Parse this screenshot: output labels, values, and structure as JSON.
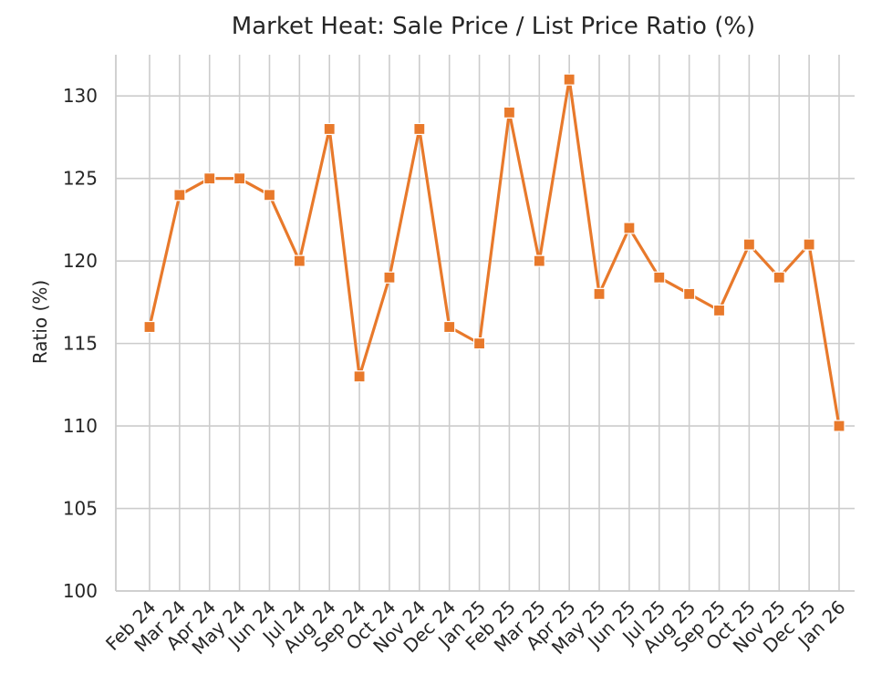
{
  "chart_data": {
    "type": "line",
    "title": "Market Heat: Sale Price / List Price Ratio (%)",
    "xlabel": "",
    "ylabel": "Ratio (%)",
    "categories": [
      "Feb 24",
      "Mar 24",
      "Apr 24",
      "May 24",
      "Jun 24",
      "Jul 24",
      "Aug 24",
      "Sep 24",
      "Oct 24",
      "Nov 24",
      "Dec 24",
      "Jan 25",
      "Feb 25",
      "Mar 25",
      "Apr 25",
      "May 25",
      "Jun 25",
      "Jul 25",
      "Aug 25",
      "Sep 25",
      "Oct 25",
      "Nov 25",
      "Dec 25",
      "Jan 26"
    ],
    "series": [
      {
        "values": [
          116,
          124,
          125,
          125,
          124,
          120,
          128,
          113,
          119,
          128,
          116,
          115,
          129,
          120,
          131,
          118,
          122,
          119,
          118,
          117,
          121,
          119,
          121,
          110
        ],
        "color": "#E8792B",
        "marker": "square"
      }
    ],
    "ylim": [
      100,
      132.5
    ],
    "yticks": [
      100,
      105,
      110,
      115,
      120,
      125,
      130
    ],
    "grid": true,
    "legend": "none"
  }
}
